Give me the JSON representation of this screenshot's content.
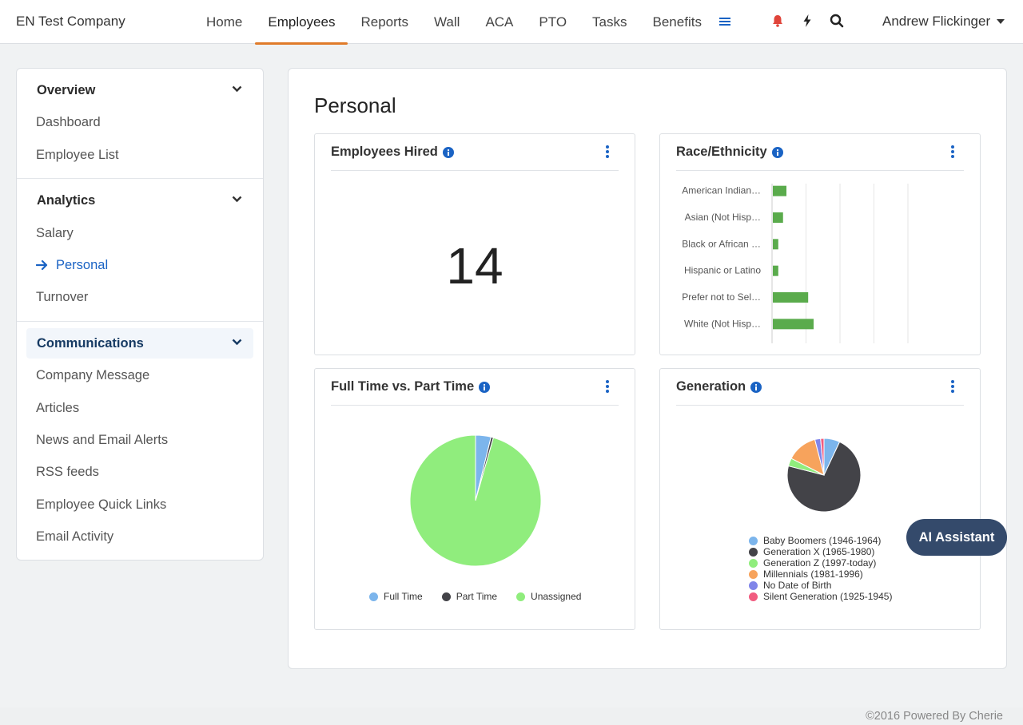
{
  "header": {
    "company": "EN Test Company",
    "nav": [
      "Home",
      "Employees",
      "Reports",
      "Wall",
      "ACA",
      "PTO",
      "Tasks",
      "Benefits"
    ],
    "active_nav": "Employees",
    "user_name": "Andrew Flickinger"
  },
  "sidebar": {
    "sections": [
      {
        "title": "Overview",
        "items": [
          "Dashboard",
          "Employee List"
        ]
      },
      {
        "title": "Analytics",
        "items": [
          "Salary",
          "Personal",
          "Turnover"
        ]
      },
      {
        "title": "Communications",
        "items": [
          "Company Message",
          "Articles",
          "News and Email Alerts",
          "RSS feeds",
          "Employee Quick Links",
          "Email Activity"
        ]
      }
    ],
    "active_item": "Personal"
  },
  "main": {
    "title": "Personal",
    "cards": {
      "hired": {
        "title": "Employees Hired",
        "value": "14"
      },
      "race": {
        "title": "Race/Ethnicity"
      },
      "fulltime": {
        "title": "Full Time vs. Part Time"
      },
      "generation": {
        "title": "Generation"
      }
    }
  },
  "chart_data": [
    {
      "type": "bar",
      "orientation": "horizontal",
      "categories": [
        "American Indian…",
        "Asian (Not Hisp…",
        "Black or African …",
        "Hispanic or Latino",
        "Prefer not to Sel…",
        "White (Not Hisp…"
      ],
      "values": [
        2,
        1.5,
        0.8,
        0.8,
        5.2,
        6
      ],
      "xlim": [
        0,
        20
      ],
      "grid": true,
      "color": "#5aab4c"
    },
    {
      "type": "pie",
      "labels": [
        "Full Time",
        "Part Time",
        "Unassigned"
      ],
      "values": [
        3.8,
        0.6,
        95.6
      ],
      "colors": [
        "#7cb5ec",
        "#434348",
        "#90ed7d"
      ],
      "legend": "bottom"
    },
    {
      "type": "pie",
      "labels": [
        "Baby Boomers (1946-1964)",
        "Generation X (1965-1980)",
        "Generation Z (1997-today)",
        "Millennials (1981-1996)",
        "No Date of Birth",
        "Silent Generation (1925-1945)"
      ],
      "values": [
        7,
        72,
        3.5,
        13.5,
        2.5,
        1.5
      ],
      "colors": [
        "#7cb5ec",
        "#434348",
        "#90ed7d",
        "#f7a35c",
        "#8085e9",
        "#f15c80"
      ],
      "legend": "bottom"
    }
  ],
  "ai_assistant": "AI Assistant",
  "footer": "©2016 Powered By Cherie"
}
